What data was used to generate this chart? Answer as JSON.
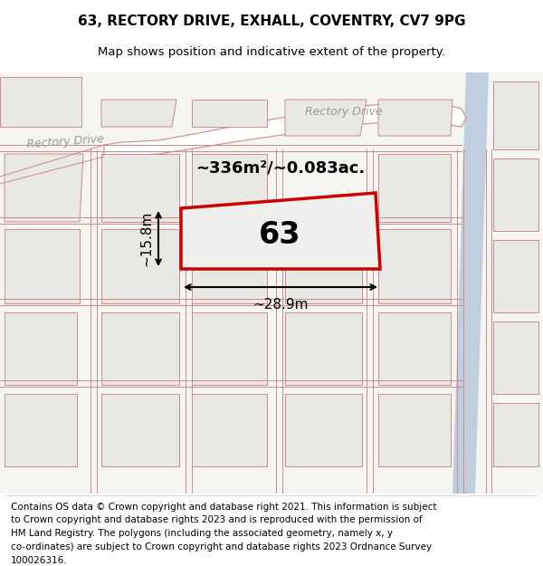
{
  "title": "63, RECTORY DRIVE, EXHALL, COVENTRY, CV7 9PG",
  "subtitle": "Map shows position and indicative extent of the property.",
  "footer_lines": [
    "Contains OS data © Crown copyright and database right 2021. This information is subject",
    "to Crown copyright and database rights 2023 and is reproduced with the permission of",
    "HM Land Registry. The polygons (including the associated geometry, namely x, y",
    "co-ordinates) are subject to Crown copyright and database rights 2023 Ordnance Survey",
    "100026316."
  ],
  "bg_color": "#f2f2ee",
  "map_bg": "#f5f5f2",
  "light_fill": "#e8e8e5",
  "property_fill": "#efefed",
  "property_outline": "#cc0000",
  "road_fill": "#ffffff",
  "road_label_color": "#999999",
  "pink_line_color": "#d08888",
  "blue_area_color": "#c0cfe0",
  "area_text": "~336m²/~0.083ac.",
  "plot_label": "63",
  "width_label": "~28.9m",
  "height_label": "~15.8m",
  "title_fontsize": 11,
  "subtitle_fontsize": 9.5,
  "footer_fontsize": 7.5
}
